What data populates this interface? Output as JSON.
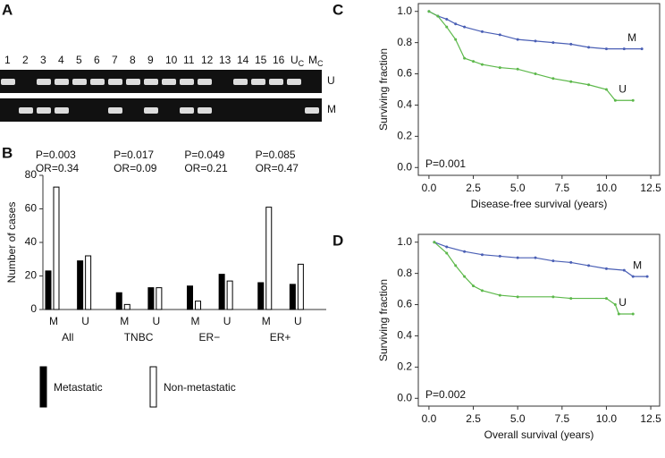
{
  "panel_a": {
    "panel_label": "A",
    "lanes": [
      {
        "text": "1"
      },
      {
        "text": "2"
      },
      {
        "text": "3"
      },
      {
        "text": "4"
      },
      {
        "text": "5"
      },
      {
        "text": "6"
      },
      {
        "text": "7"
      },
      {
        "text": "8"
      },
      {
        "text": "9"
      },
      {
        "text": "10"
      },
      {
        "text": "11"
      },
      {
        "text": "12"
      },
      {
        "text": "13"
      },
      {
        "text": "14"
      },
      {
        "text": "15"
      },
      {
        "text": "16"
      },
      {
        "text": "U",
        "sub": "C"
      },
      {
        "text": "M",
        "sub": "C"
      }
    ],
    "rows": [
      "U",
      "M"
    ]
  },
  "chart_data": [
    {
      "type": "bar",
      "panel_label": "B",
      "y_label": "Number of cases",
      "categories": [
        "M",
        "U",
        "M",
        "U",
        "M",
        "U",
        "M",
        "U"
      ],
      "groups": [
        "All",
        "TNBC",
        "ER−",
        "ER+"
      ],
      "annotations": [
        [
          "P=0.003",
          "OR=0.34"
        ],
        [
          "P=0.017",
          "OR=0.09"
        ],
        [
          "P=0.049",
          "OR=0.21"
        ],
        [
          "P=0.085",
          "OR=0.47"
        ]
      ],
      "series": [
        {
          "name": "Metastatic",
          "color": "#000000",
          "values": [
            23,
            29,
            10,
            13,
            14,
            21,
            16,
            15
          ]
        },
        {
          "name": "Non-metastatic",
          "color": "#ffffff",
          "values": [
            73,
            32,
            3,
            13,
            5,
            17,
            61,
            27
          ]
        }
      ],
      "ylim": [
        0,
        80
      ],
      "yticks": [
        0,
        20,
        40,
        60,
        80
      ],
      "legend": "bottom"
    },
    {
      "type": "line",
      "panel_label": "C",
      "x_label": "Disease-free survival (years)",
      "y_label": "Surviving fraction",
      "annotation": "P=0.001",
      "series": [
        {
          "name": "M",
          "color": "#4a5fb5",
          "x": [
            0,
            0.5,
            1,
            1.5,
            2,
            3,
            4,
            5,
            6,
            7,
            8,
            9,
            10,
            11,
            12
          ],
          "values": [
            1.0,
            0.97,
            0.95,
            0.92,
            0.9,
            0.87,
            0.85,
            0.82,
            0.81,
            0.8,
            0.79,
            0.77,
            0.76,
            0.76,
            0.76
          ]
        },
        {
          "name": "U",
          "color": "#5cb84a",
          "x": [
            0,
            0.5,
            1,
            1.5,
            2,
            2.5,
            3,
            4,
            5,
            6,
            7,
            8,
            9,
            10,
            10.5,
            11.5
          ],
          "values": [
            1.0,
            0.97,
            0.9,
            0.82,
            0.7,
            0.68,
            0.66,
            0.64,
            0.63,
            0.6,
            0.57,
            0.55,
            0.53,
            0.5,
            0.43,
            0.43
          ]
        }
      ],
      "xlim": [
        -0.6,
        13.0
      ],
      "xticks": [
        {
          "value": 0,
          "label": "0.0"
        },
        2.5,
        {
          "value": 5,
          "label": "5.0"
        },
        7.5,
        {
          "value": 10,
          "label": "10.0"
        },
        12.5
      ],
      "ylim": [
        -0.05,
        1.05
      ],
      "yticks": [
        {
          "value": 0,
          "label": "0.0"
        },
        0.2,
        0.4,
        0.6,
        0.8,
        {
          "value": 1,
          "label": "1.0"
        }
      ]
    },
    {
      "type": "line",
      "panel_label": "D",
      "x_label": "Overall survival (years)",
      "y_label": "Surviving fraction",
      "annotation": "P=0.002",
      "series": [
        {
          "name": "M",
          "color": "#4a5fb5",
          "x": [
            0.3,
            1,
            2,
            3,
            4,
            5,
            6,
            7,
            8,
            9,
            10,
            11,
            11.5,
            12.3
          ],
          "values": [
            1.0,
            0.97,
            0.94,
            0.92,
            0.91,
            0.9,
            0.9,
            0.88,
            0.87,
            0.85,
            0.83,
            0.82,
            0.78,
            0.78
          ]
        },
        {
          "name": "U",
          "color": "#5cb84a",
          "x": [
            0.3,
            1,
            1.5,
            2,
            2.5,
            3,
            4,
            5,
            7,
            8,
            10,
            10.5,
            10.7,
            11.5
          ],
          "values": [
            1.0,
            0.93,
            0.85,
            0.78,
            0.72,
            0.69,
            0.66,
            0.65,
            0.65,
            0.64,
            0.64,
            0.6,
            0.54,
            0.54
          ]
        }
      ],
      "xlim": [
        -0.6,
        13.0
      ],
      "xticks": [
        {
          "value": 0,
          "label": "0.0"
        },
        2.5,
        {
          "value": 5,
          "label": "5.0"
        },
        7.5,
        {
          "value": 10,
          "label": "10.0"
        },
        12.5
      ],
      "ylim": [
        -0.05,
        1.05
      ],
      "yticks": [
        {
          "value": 0,
          "label": "0.0"
        },
        0.2,
        0.4,
        0.6,
        0.8,
        {
          "value": 1,
          "label": "1.0"
        }
      ]
    }
  ]
}
